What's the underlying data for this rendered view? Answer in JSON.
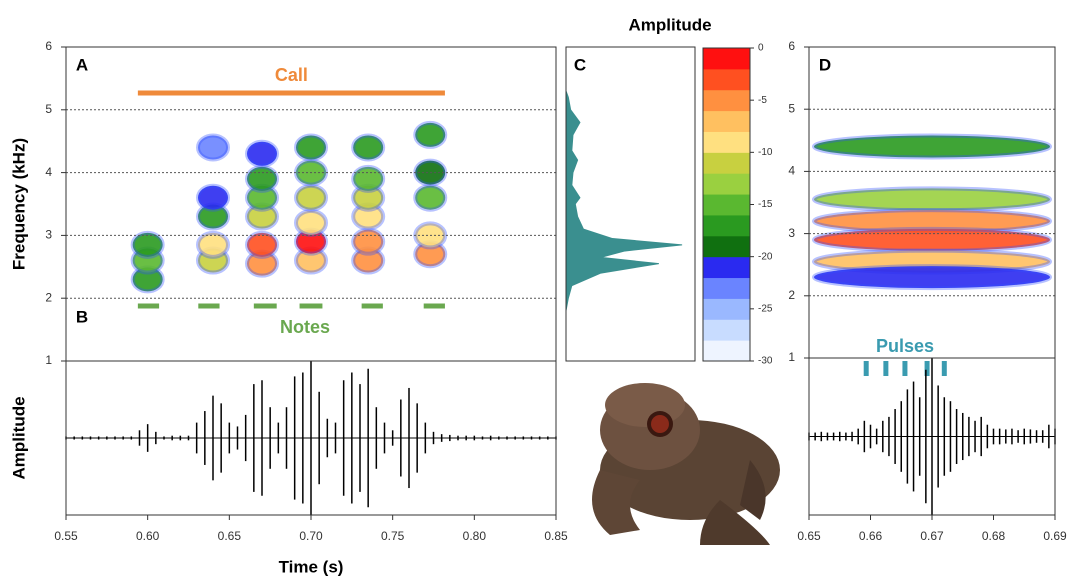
{
  "chart_data": [
    {
      "type": "spectrogram",
      "panel": "A",
      "ylabel": "Frequency (kHz)",
      "ylim": [
        1,
        6
      ],
      "yticks": [
        2,
        3,
        4,
        5,
        6
      ],
      "grid": true,
      "xlim": [
        0.55,
        0.85
      ],
      "annotation": "Call",
      "call": [
        0.594,
        0.782
      ],
      "call_color": "#ef8a3a",
      "notes_label": "Notes",
      "notes_start": [
        0.594,
        0.631,
        0.665,
        0.693,
        0.731,
        0.769
      ],
      "notes_end": [
        0.607,
        0.644,
        0.679,
        0.707,
        0.744,
        0.782
      ],
      "notes_color": "#6aa84f",
      "blobs": {
        "t": [
          0.6,
          0.6,
          0.6,
          0.64,
          0.64,
          0.64,
          0.64,
          0.64,
          0.67,
          0.67,
          0.67,
          0.67,
          0.67,
          0.67,
          0.7,
          0.7,
          0.7,
          0.7,
          0.7,
          0.7,
          0.735,
          0.735,
          0.735,
          0.735,
          0.735,
          0.735,
          0.773,
          0.773,
          0.773,
          0.773,
          0.773
        ],
        "f": [
          2.3,
          2.6,
          2.85,
          2.6,
          2.85,
          3.3,
          3.6,
          4.4,
          2.55,
          2.85,
          3.3,
          3.6,
          3.9,
          4.3,
          2.6,
          2.9,
          3.2,
          3.6,
          4.0,
          4.4,
          2.6,
          2.9,
          3.3,
          3.6,
          3.9,
          4.4,
          2.7,
          3.0,
          3.6,
          4.0,
          4.6
        ],
        "db": [
          -18,
          -16,
          -18,
          -12,
          -10,
          -18,
          -22,
          -24,
          -5,
          -3,
          -12,
          -16,
          -18,
          -22,
          -8,
          -2,
          -10,
          -12,
          -15,
          -18,
          -5,
          -6,
          -10,
          -12,
          -15,
          -18,
          -5,
          -10,
          -15,
          -20,
          -18
        ]
      }
    },
    {
      "type": "waveform",
      "panel": "B",
      "ylabel": "Amplitude",
      "ylim": [
        -1,
        1
      ],
      "yticks": [
        1
      ],
      "xlabel": "Time (s)",
      "xlim": [
        0.55,
        0.85
      ],
      "xticks": [
        0.55,
        {
          "value": 0.6,
          "label": "0.60"
        },
        0.65,
        {
          "value": 0.7,
          "label": "0.70"
        },
        0.75,
        {
          "value": 0.8,
          "label": "0.80"
        },
        0.85
      ],
      "color": "#000000",
      "x": [
        0.55,
        0.555,
        0.56,
        0.565,
        0.57,
        0.575,
        0.58,
        0.585,
        0.59,
        0.595,
        0.6,
        0.605,
        0.61,
        0.615,
        0.62,
        0.625,
        0.63,
        0.635,
        0.64,
        0.645,
        0.65,
        0.655,
        0.66,
        0.665,
        0.67,
        0.675,
        0.68,
        0.685,
        0.69,
        0.695,
        0.7,
        0.705,
        0.71,
        0.715,
        0.72,
        0.725,
        0.73,
        0.735,
        0.74,
        0.745,
        0.75,
        0.755,
        0.76,
        0.765,
        0.77,
        0.775,
        0.78,
        0.785,
        0.79,
        0.795,
        0.8,
        0.805,
        0.81,
        0.815,
        0.82,
        0.825,
        0.83,
        0.835,
        0.84,
        0.845,
        0.85
      ],
      "values": [
        0.02,
        0.02,
        0.02,
        0.02,
        0.02,
        0.02,
        0.02,
        0.02,
        0.02,
        0.1,
        0.18,
        0.08,
        0.02,
        0.03,
        0.03,
        0.03,
        0.2,
        0.35,
        0.55,
        0.45,
        0.2,
        0.15,
        0.3,
        0.7,
        0.75,
        0.4,
        0.2,
        0.4,
        0.8,
        0.85,
        1.0,
        0.6,
        0.25,
        0.2,
        0.75,
        0.85,
        0.7,
        0.9,
        0.4,
        0.2,
        0.1,
        0.5,
        0.65,
        0.45,
        0.2,
        0.08,
        0.05,
        0.04,
        0.03,
        0.03,
        0.03,
        0.02,
        0.03,
        0.02,
        0.02,
        0.02,
        0.02,
        0.02,
        0.02,
        0.02,
        0.02
      ]
    },
    {
      "type": "profile",
      "panel": "C",
      "ylim": [
        1,
        6
      ],
      "xlim": [
        0,
        1
      ],
      "color": "#3a8f8f",
      "frequencies": [
        1.8,
        2.0,
        2.2,
        2.4,
        2.55,
        2.65,
        2.75,
        2.85,
        2.95,
        3.1,
        3.3,
        3.5,
        3.6,
        3.8,
        4.0,
        4.2,
        4.35,
        4.6,
        4.8,
        5.0,
        5.2,
        5.3
      ],
      "values": [
        0,
        0.02,
        0.05,
        0.3,
        0.8,
        0.3,
        0.5,
        1.0,
        0.4,
        0.15,
        0.1,
        0.08,
        0.12,
        0.05,
        0.06,
        0.1,
        0.05,
        0.06,
        0.12,
        0.04,
        0.02,
        0
      ]
    },
    {
      "type": "colorbar",
      "title": "Amplitude",
      "clim": [
        -30,
        0
      ],
      "ticks": [
        0,
        -5,
        -10,
        -15,
        -20,
        -25,
        -30
      ],
      "colors": [
        "#eef4ff",
        "#c8dcff",
        "#9ab8ff",
        "#6a84ff",
        "#2a2af0",
        "#107010",
        "#2a9a20",
        "#5ab830",
        "#9ad040",
        "#c8d040",
        "#ffe080",
        "#ffc060",
        "#ff9040",
        "#ff5020",
        "#ff1010"
      ]
    },
    {
      "type": "spectrogram",
      "panel": "D",
      "ylim": [
        1,
        6
      ],
      "yticks": [
        2,
        3,
        4,
        5,
        6
      ],
      "grid": true,
      "xlim": [
        0.65,
        0.69
      ],
      "blobs": {
        "t": [
          0.67,
          0.67,
          0.67,
          0.67,
          0.67,
          0.67
        ],
        "f": [
          4.4,
          3.55,
          3.2,
          2.9,
          2.55,
          2.3
        ],
        "db": [
          -18,
          -14,
          -6,
          -3,
          -8,
          -22
        ]
      },
      "pulses_label": "Pulses",
      "pulses": [
        0.6593,
        0.6625,
        0.6656,
        0.6692,
        0.672
      ],
      "pulses_color": "#3a9bb0"
    },
    {
      "type": "waveform",
      "ylim": [
        -1,
        1
      ],
      "yticks": [
        1
      ],
      "xlim": [
        0.65,
        0.69
      ],
      "xticks": [
        0.65,
        0.66,
        0.67,
        0.68,
        0.69
      ],
      "color": "#000000",
      "x": [
        0.65,
        0.651,
        0.652,
        0.653,
        0.654,
        0.655,
        0.656,
        0.657,
        0.658,
        0.659,
        0.66,
        0.661,
        0.662,
        0.663,
        0.664,
        0.665,
        0.666,
        0.667,
        0.668,
        0.669,
        0.67,
        0.671,
        0.672,
        0.673,
        0.674,
        0.675,
        0.676,
        0.677,
        0.678,
        0.679,
        0.68,
        0.681,
        0.682,
        0.683,
        0.684,
        0.685,
        0.686,
        0.687,
        0.688,
        0.689,
        0.69
      ],
      "values": [
        0.05,
        0.05,
        0.06,
        0.05,
        0.05,
        0.06,
        0.05,
        0.06,
        0.1,
        0.2,
        0.15,
        0.1,
        0.2,
        0.25,
        0.35,
        0.45,
        0.6,
        0.7,
        0.5,
        0.85,
        1.0,
        0.65,
        0.5,
        0.45,
        0.35,
        0.3,
        0.25,
        0.2,
        0.25,
        0.15,
        0.1,
        0.1,
        0.09,
        0.1,
        0.08,
        0.1,
        0.09,
        0.08,
        0.08,
        0.15,
        0.1
      ]
    }
  ]
}
